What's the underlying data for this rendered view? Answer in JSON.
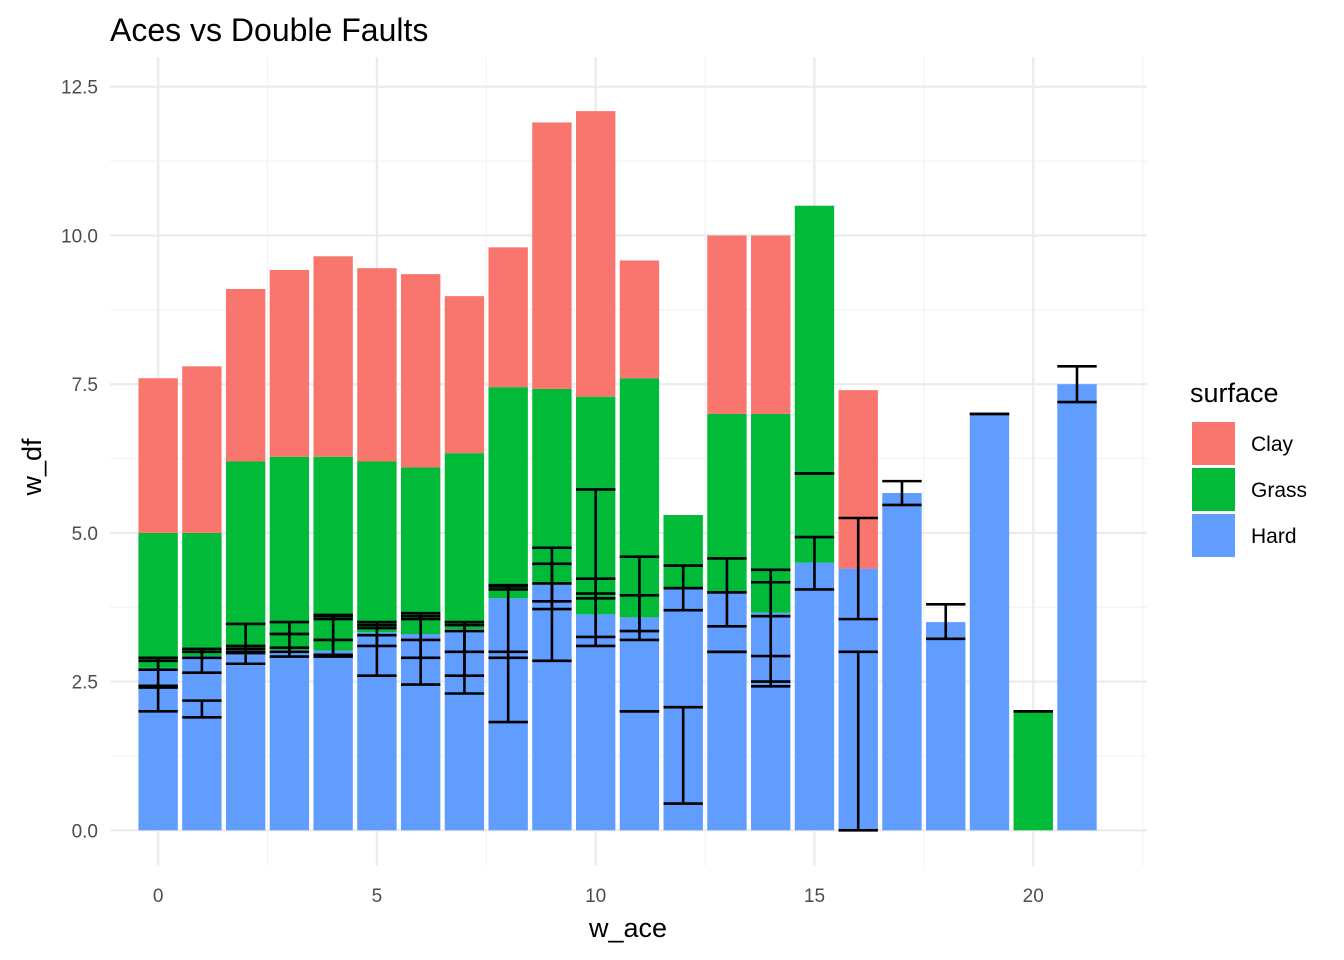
{
  "chart_data": {
    "type": "bar",
    "stacked": true,
    "title": "Aces vs Double Faults",
    "xlabel": "w_ace",
    "ylabel": "w_df",
    "xlim": [
      -1.1,
      22.6
    ],
    "ylim": [
      -0.6,
      13.0
    ],
    "x_ticks": [
      0,
      5,
      10,
      15,
      20
    ],
    "x_tick_labels": [
      "0",
      "5",
      "10",
      "15",
      "20"
    ],
    "y_ticks": [
      0,
      2.5,
      5,
      7.5,
      10,
      12.5
    ],
    "y_tick_labels": [
      "0.0",
      "2.5",
      "5.0",
      "7.5",
      "10.0",
      "12.5"
    ],
    "grid": true,
    "legend": {
      "title": "surface",
      "position": "right"
    },
    "x": [
      0,
      1,
      2,
      3,
      4,
      5,
      6,
      7,
      8,
      9,
      10,
      11,
      12,
      13,
      14,
      15,
      16,
      17,
      18,
      19,
      20,
      21
    ],
    "series": [
      {
        "name": "Hard",
        "color": "#619CFF",
        "values": [
          2.73,
          2.93,
          3.03,
          3.03,
          3.02,
          3.33,
          3.3,
          3.38,
          3.9,
          4.13,
          3.63,
          3.58,
          4.06,
          4.0,
          3.66,
          4.5,
          4.4,
          5.67,
          3.5,
          7.0,
          0,
          7.5
        ]
      },
      {
        "name": "Grass",
        "color": "#00BA38",
        "values": [
          2.27,
          2.07,
          3.17,
          3.25,
          3.26,
          2.87,
          2.8,
          2.96,
          3.55,
          3.29,
          3.66,
          4.02,
          1.24,
          3.0,
          3.34,
          6.0,
          0,
          0,
          0,
          0,
          2.0,
          0
        ]
      },
      {
        "name": "Clay",
        "color": "#F8766D",
        "values": [
          2.6,
          2.8,
          2.9,
          3.14,
          3.37,
          3.25,
          3.25,
          2.64,
          2.35,
          4.48,
          4.8,
          1.98,
          0,
          3.0,
          3.0,
          0,
          3.0,
          0,
          0,
          0,
          0,
          0
        ]
      }
    ],
    "error_bars": [
      {
        "x": 0,
        "low": 2.0,
        "high": 2.43
      },
      {
        "x": 0,
        "low": 2.4,
        "high": 2.9
      },
      {
        "x": 0,
        "low": 2.7,
        "high": 2.85
      },
      {
        "x": 1,
        "low": 1.9,
        "high": 2.18
      },
      {
        "x": 1,
        "low": 2.65,
        "high": 3.0
      },
      {
        "x": 1,
        "low": 2.9,
        "high": 3.05
      },
      {
        "x": 2,
        "low": 2.8,
        "high": 3.1
      },
      {
        "x": 2,
        "low": 2.98,
        "high": 3.47
      },
      {
        "x": 2,
        "low": 3.0,
        "high": 3.05
      },
      {
        "x": 3,
        "low": 2.92,
        "high": 3.07
      },
      {
        "x": 3,
        "low": 3.0,
        "high": 3.5
      },
      {
        "x": 3,
        "low": 3.3,
        "high": 3.3
      },
      {
        "x": 4,
        "low": 2.92,
        "high": 3.2
      },
      {
        "x": 4,
        "low": 2.95,
        "high": 3.6
      },
      {
        "x": 4,
        "low": 3.55,
        "high": 3.62
      },
      {
        "x": 5,
        "low": 2.6,
        "high": 3.28
      },
      {
        "x": 5,
        "low": 3.1,
        "high": 3.5
      },
      {
        "x": 5,
        "low": 3.4,
        "high": 3.45
      },
      {
        "x": 6,
        "low": 2.45,
        "high": 3.2
      },
      {
        "x": 6,
        "low": 2.9,
        "high": 3.6
      },
      {
        "x": 6,
        "low": 3.55,
        "high": 3.65
      },
      {
        "x": 7,
        "low": 2.3,
        "high": 3.35
      },
      {
        "x": 7,
        "low": 2.6,
        "high": 3.45
      },
      {
        "x": 7,
        "low": 3.0,
        "high": 3.5
      },
      {
        "x": 8,
        "low": 1.82,
        "high": 3.0
      },
      {
        "x": 8,
        "low": 2.9,
        "high": 4.1
      },
      {
        "x": 8,
        "low": 4.05,
        "high": 4.12
      },
      {
        "x": 9,
        "low": 2.85,
        "high": 4.75
      },
      {
        "x": 9,
        "low": 3.72,
        "high": 4.48
      },
      {
        "x": 9,
        "low": 3.85,
        "high": 4.15
      },
      {
        "x": 10,
        "low": 3.1,
        "high": 3.9
      },
      {
        "x": 10,
        "low": 3.25,
        "high": 4.23
      },
      {
        "x": 10,
        "low": 3.98,
        "high": 5.73
      },
      {
        "x": 11,
        "low": 2.0,
        "high": 2.0
      },
      {
        "x": 11,
        "low": 3.2,
        "high": 3.95
      },
      {
        "x": 11,
        "low": 3.35,
        "high": 4.6
      },
      {
        "x": 12,
        "low": 0.45,
        "high": 2.07
      },
      {
        "x": 12,
        "low": 3.7,
        "high": 4.45
      },
      {
        "x": 12,
        "low": 4.07,
        "high": 4.07
      },
      {
        "x": 13,
        "low": 3.0,
        "high": 3.0
      },
      {
        "x": 13,
        "low": 3.43,
        "high": 4.57
      },
      {
        "x": 13,
        "low": 4.0,
        "high": 4.0
      },
      {
        "x": 14,
        "low": 2.42,
        "high": 2.93
      },
      {
        "x": 14,
        "low": 2.5,
        "high": 4.38
      },
      {
        "x": 14,
        "low": 3.6,
        "high": 4.17
      },
      {
        "x": 15,
        "low": 4.05,
        "high": 4.93
      },
      {
        "x": 15,
        "low": 6.0,
        "high": 6.0
      },
      {
        "x": 16,
        "low": 0.0,
        "high": 3.0
      },
      {
        "x": 16,
        "low": 3.55,
        "high": 5.25
      },
      {
        "x": 17,
        "low": 5.47,
        "high": 5.87
      },
      {
        "x": 18,
        "low": 3.22,
        "high": 3.8
      },
      {
        "x": 19,
        "low": 7.0,
        "high": 7.0
      },
      {
        "x": 20,
        "low": 2.0,
        "high": 2.0
      },
      {
        "x": 21,
        "low": 7.2,
        "high": 7.8
      }
    ]
  }
}
